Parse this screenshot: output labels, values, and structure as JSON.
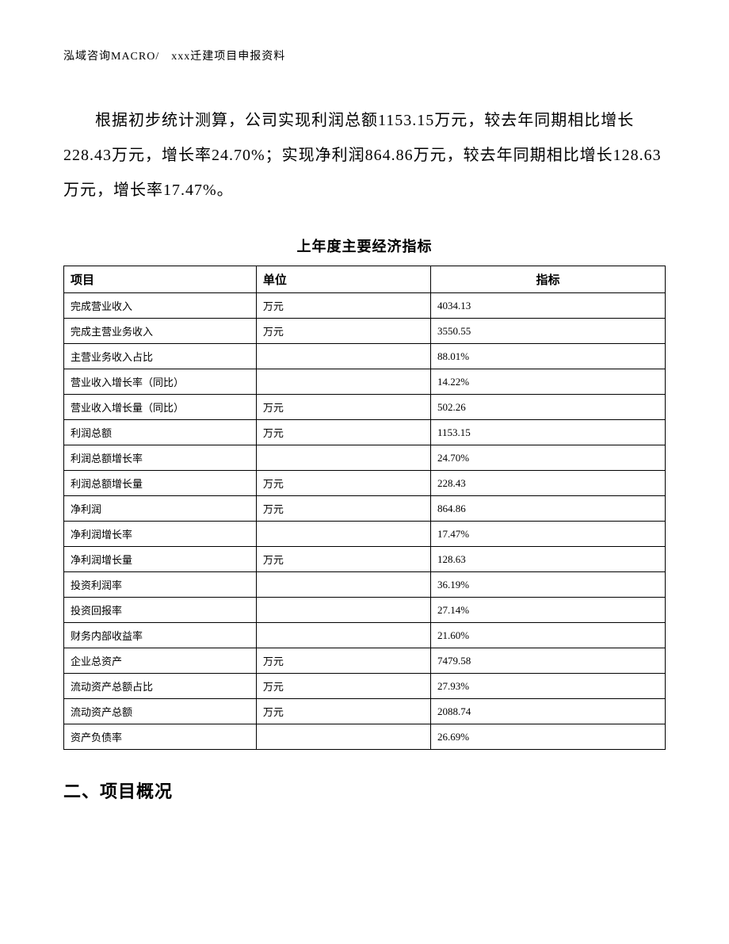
{
  "header": {
    "text": "泓域咨询MACRO/　xxx迁建项目申报资料"
  },
  "paragraph": {
    "text": "根据初步统计测算，公司实现利润总额1153.15万元，较去年同期相比增长228.43万元，增长率24.70%；实现净利润864.86万元，较去年同期相比增长128.63万元，增长率17.47%。"
  },
  "table": {
    "title": "上年度主要经济指标",
    "columns": [
      "项目",
      "单位",
      "指标"
    ],
    "rows": [
      [
        "完成营业收入",
        "万元",
        "4034.13"
      ],
      [
        "完成主营业务收入",
        "万元",
        "3550.55"
      ],
      [
        "主营业务收入占比",
        "",
        "88.01%"
      ],
      [
        "营业收入增长率（同比）",
        "",
        "14.22%"
      ],
      [
        "营业收入增长量（同比）",
        "万元",
        "502.26"
      ],
      [
        "利润总额",
        "万元",
        "1153.15"
      ],
      [
        "利润总额增长率",
        "",
        "24.70%"
      ],
      [
        "利润总额增长量",
        "万元",
        "228.43"
      ],
      [
        "净利润",
        "万元",
        "864.86"
      ],
      [
        "净利润增长率",
        "",
        "17.47%"
      ],
      [
        "净利润增长量",
        "万元",
        "128.63"
      ],
      [
        "投资利润率",
        "",
        "36.19%"
      ],
      [
        "投资回报率",
        "",
        "27.14%"
      ],
      [
        "财务内部收益率",
        "",
        "21.60%"
      ],
      [
        "企业总资产",
        "万元",
        "7479.58"
      ],
      [
        "流动资产总额占比",
        "万元",
        "27.93%"
      ],
      [
        "流动资产总额",
        "万元",
        "2088.74"
      ],
      [
        "资产负债率",
        "",
        "26.69%"
      ]
    ]
  },
  "section": {
    "title": "二、项目概况"
  }
}
